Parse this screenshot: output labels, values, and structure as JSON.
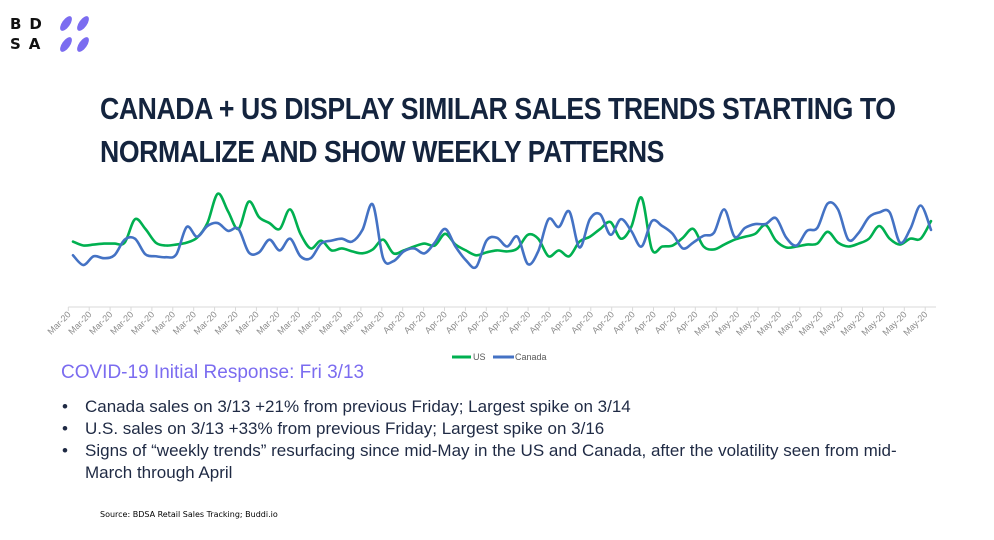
{
  "logo": {
    "letters_row1": "BD",
    "letters_row2": "SA",
    "brand_color": "#7b6cf0"
  },
  "title": {
    "line1": "CANADA + US DISPLAY SIMILAR SALES TRENDS STARTING TO",
    "line2": "NORMALIZE AND SHOW WEEKLY PATTERNS"
  },
  "chart_data": {
    "type": "line",
    "title": "",
    "xlabel": "",
    "ylabel": "",
    "y_axis_visible": false,
    "grid": false,
    "legend_position": "bottom",
    "ylim": [
      0,
      125
    ],
    "tick_labels": [
      "Mar-20",
      "Mar-20",
      "Mar-20",
      "Mar-20",
      "Mar-20",
      "Mar-20",
      "Mar-20",
      "Mar-20",
      "Mar-20",
      "Mar-20",
      "Mar-20",
      "Mar-20",
      "Mar-20",
      "Mar-20",
      "Mar-20",
      "Mar-20",
      "Apr-20",
      "Apr-20",
      "Apr-20",
      "Apr-20",
      "Apr-20",
      "Apr-20",
      "Apr-20",
      "Apr-20",
      "Apr-20",
      "Apr-20",
      "Apr-20",
      "Apr-20",
      "Apr-20",
      "Apr-20",
      "Apr-20",
      "May-20",
      "May-20",
      "May-20",
      "May-20",
      "May-20",
      "May-20",
      "May-20",
      "May-20",
      "May-20",
      "May-20",
      "May-20"
    ],
    "series": [
      {
        "name": "US",
        "color": "#00b050",
        "values": [
          67,
          63,
          64,
          65,
          65,
          66,
          90,
          80,
          66,
          63,
          64,
          66,
          71,
          86,
          116,
          98,
          80,
          108,
          92,
          86,
          80,
          100,
          75,
          60,
          68,
          58,
          60,
          57,
          55,
          59,
          69,
          55,
          58,
          62,
          65,
          63,
          75,
          64,
          58,
          53,
          56,
          58,
          57,
          60,
          74,
          70,
          52,
          58,
          52,
          67,
          72,
          80,
          87,
          70,
          82,
          112,
          59,
          62,
          63,
          71,
          80,
          62,
          59,
          64,
          69,
          72,
          75,
          84,
          68,
          61,
          62,
          64,
          65,
          77,
          66,
          62,
          65,
          70,
          83,
          70,
          64,
          70,
          70,
          88
        ]
      },
      {
        "name": "Canada",
        "color": "#4472c4",
        "values": [
          53,
          43,
          52,
          50,
          53,
          69,
          70,
          54,
          52,
          51,
          54,
          82,
          72,
          83,
          86,
          78,
          80,
          56,
          56,
          69,
          58,
          70,
          52,
          50,
          65,
          68,
          70,
          67,
          79,
          105,
          50,
          47,
          57,
          60,
          55,
          66,
          80,
          62,
          48,
          41,
          68,
          71,
          62,
          72,
          44,
          57,
          90,
          82,
          98,
          61,
          90,
          95,
          74,
          90,
          78,
          62,
          88,
          83,
          75,
          60,
          66,
          73,
          76,
          100,
          72,
          81,
          85,
          85,
          91,
          71,
          63,
          78,
          81,
          106,
          100,
          69,
          76,
          92,
          97,
          97,
          66,
          80,
          104,
          79
        ]
      }
    ]
  },
  "legend": {
    "us": "US",
    "canada": "Canada"
  },
  "subhead": "COVID-19 Initial Response: Fri 3/13",
  "bullets": [
    "Canada sales on 3/13 +21% from previous Friday; Largest spike on 3/14",
    "U.S. sales on 3/13 +33% from previous Friday; Largest spike on 3/16",
    "Signs of “weekly trends” resurfacing since mid-May in the US and Canada, after the volatility seen from mid-March through April"
  ],
  "bullet_glyph": "•",
  "source": "Source: BDSA Retail Sales Tracking; Buddi.io"
}
